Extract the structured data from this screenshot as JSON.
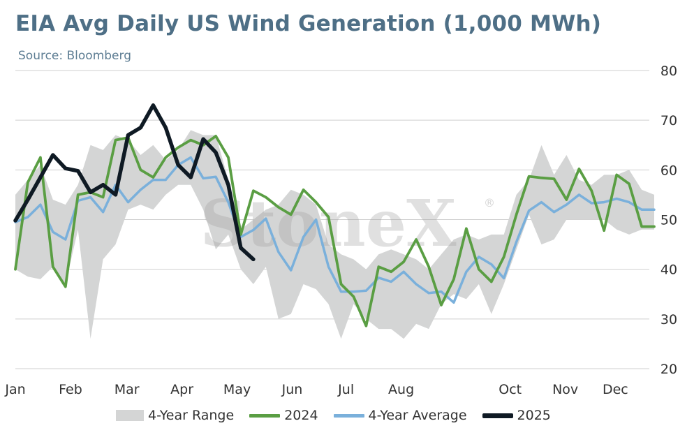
{
  "title": "EIA Avg Daily US Wind Generation (1,000 MWh)",
  "subtitle": "Source: Bloomberg",
  "watermark": "StoneX",
  "watermark_mark": "®",
  "colors": {
    "range": "#d4d5d5",
    "y2024": "#5a9e43",
    "avg": "#7ab0db",
    "y2025": "#0f1a24",
    "grid": "#cfcfcf",
    "title": "#4e6f86"
  },
  "chart_data": {
    "type": "line",
    "title": "EIA Avg Daily US Wind Generation (1,000 MWh)",
    "subtitle": "Source: Bloomberg",
    "x_unit": "week of year",
    "xlim": [
      1,
      52
    ],
    "ylim": [
      20,
      80
    ],
    "y_ticks": [
      20,
      30,
      40,
      50,
      60,
      70,
      80
    ],
    "y_axis_side": "right",
    "grid": "horizontal",
    "legend_position": "bottom",
    "month_labels": [
      {
        "label": "Jan",
        "week": 1
      },
      {
        "label": "Feb",
        "week": 5.4
      },
      {
        "label": "Mar",
        "week": 9.9
      },
      {
        "label": "Apr",
        "week": 14.3
      },
      {
        "label": "May",
        "week": 18.7
      },
      {
        "label": "Jun",
        "week": 23.1
      },
      {
        "label": "Jul",
        "week": 27.4
      },
      {
        "label": "Aug",
        "week": 31.8
      },
      {
        "label": "Oct",
        "week": 40.5
      },
      {
        "label": "Nov",
        "week": 44.9
      },
      {
        "label": "Dec",
        "week": 48.9
      }
    ],
    "series": [
      {
        "name": "4-Year Range",
        "type": "band",
        "x": [
          1,
          2,
          3,
          4,
          5,
          6,
          7,
          8,
          9,
          10,
          11,
          12,
          13,
          14,
          15,
          16,
          17,
          18,
          19,
          20,
          21,
          22,
          23,
          24,
          25,
          26,
          27,
          28,
          29,
          30,
          31,
          32,
          33,
          34,
          35,
          36,
          37,
          38,
          39,
          40,
          41,
          42,
          43,
          44,
          45,
          46,
          47,
          48,
          49,
          50,
          51,
          52
        ],
        "high": [
          55,
          58,
          61,
          54,
          53,
          57,
          65,
          64,
          67,
          66,
          63,
          65,
          62,
          64,
          68,
          67,
          67,
          58,
          48,
          50,
          52,
          53,
          56,
          55,
          53,
          45,
          43,
          42,
          40,
          43,
          44,
          43,
          42,
          40,
          43,
          46,
          47,
          46,
          47,
          47,
          55,
          58,
          65,
          59,
          63,
          58,
          57,
          59,
          59,
          60,
          56,
          55
        ],
        "low": [
          40,
          38.5,
          38,
          40.5,
          37,
          48,
          26,
          42,
          45,
          52,
          53,
          52,
          55,
          57,
          57,
          52,
          44,
          47,
          40,
          37,
          40.5,
          30,
          31,
          37,
          36,
          33,
          26,
          33,
          30,
          28,
          28,
          26,
          29,
          28,
          33,
          35,
          34,
          37,
          31,
          37,
          44,
          51,
          45,
          46,
          50,
          50,
          50,
          50,
          48,
          47,
          48,
          48
        ]
      },
      {
        "name": "2024",
        "x": [
          1,
          2,
          3,
          4,
          5,
          6,
          7,
          8,
          9,
          10,
          11,
          12,
          13,
          14,
          15,
          16,
          17,
          18,
          19,
          20,
          21,
          22,
          23,
          24,
          25,
          26,
          27,
          28,
          29,
          30,
          31,
          32,
          33,
          34,
          35,
          36,
          37,
          38,
          39,
          40,
          41,
          42,
          43,
          44,
          45,
          46,
          47,
          48,
          49,
          50,
          51,
          52
        ],
        "values": [
          40,
          57.5,
          62.5,
          40.5,
          36.5,
          55,
          55.5,
          54.5,
          66,
          66.5,
          60,
          58.5,
          62.5,
          64.5,
          66,
          65,
          66.8,
          62.5,
          47,
          55.8,
          54.5,
          52.5,
          51,
          56,
          53.5,
          50.5,
          37,
          34.5,
          28.6,
          40.5,
          39.5,
          41.5,
          46,
          40.5,
          32.8,
          38,
          48.2,
          40,
          37.5,
          42.5,
          51,
          58.7,
          58.4,
          58.2,
          54,
          60.2,
          55.8,
          47.8,
          59,
          57.2,
          48.6,
          48.6
        ]
      },
      {
        "name": "4-Year Average",
        "x": [
          1,
          2,
          3,
          4,
          5,
          6,
          7,
          8,
          9,
          10,
          11,
          12,
          13,
          14,
          15,
          16,
          17,
          18,
          19,
          20,
          21,
          22,
          23,
          24,
          25,
          26,
          27,
          28,
          29,
          30,
          31,
          32,
          33,
          34,
          35,
          36,
          37,
          38,
          39,
          40,
          41,
          42,
          43,
          44,
          45,
          46,
          47,
          48,
          49,
          50,
          51,
          52
        ],
        "values": [
          49.5,
          50.5,
          53,
          47.5,
          46,
          53.8,
          54.5,
          51.5,
          57,
          53.5,
          56,
          58,
          58,
          61,
          62.5,
          58.3,
          58.6,
          53.5,
          46.5,
          47.9,
          50.2,
          43.5,
          39.8,
          46.5,
          50,
          40.5,
          35.5,
          35.5,
          35.7,
          38.3,
          37.5,
          39.5,
          37,
          35.2,
          35.5,
          33.3,
          39.5,
          42.5,
          41,
          38.2,
          45.5,
          51.8,
          53.5,
          51.5,
          53,
          55,
          53.3,
          53.5,
          54.2,
          53.5,
          52,
          52
        ]
      },
      {
        "name": "2025",
        "x": [
          1,
          2,
          3,
          4,
          5,
          6,
          7,
          8,
          9,
          10,
          11,
          12,
          13,
          14,
          15,
          16,
          17,
          18,
          19,
          20
        ],
        "values": [
          49.8,
          54,
          58.5,
          63,
          60.3,
          59.8,
          55.5,
          57,
          55,
          67,
          68.5,
          73,
          68.5,
          61,
          58.5,
          66.2,
          63.5,
          57,
          44.3,
          42
        ]
      }
    ]
  },
  "legend": {
    "range_label": "4-Year Range",
    "y2024_label": "2024",
    "avg_label": "4-Year Average",
    "y2025_label": "2025"
  }
}
